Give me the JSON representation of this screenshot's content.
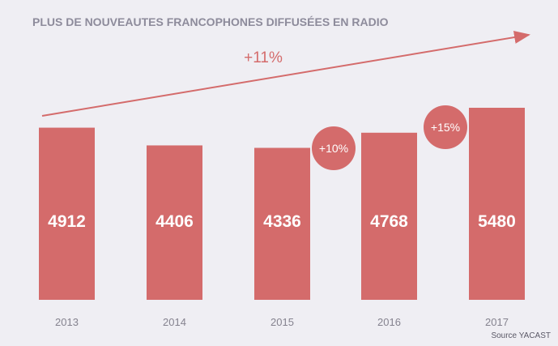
{
  "chart_data": {
    "type": "bar",
    "title": "PLUS DE NOUVEAUTES FRANCOPHONES DIFFUSÉES EN RADIO",
    "categories": [
      "2013",
      "2014",
      "2015",
      "2016",
      "2017"
    ],
    "values": [
      4912,
      4406,
      4336,
      4768,
      5480
    ],
    "value_labels": [
      "4912",
      "4406",
      "4336",
      "4768",
      "5480"
    ],
    "ylim": [
      0,
      5480
    ],
    "grid": false,
    "annotations": {
      "overall_growth": "+11%",
      "bubbles": [
        {
          "label": "+10%",
          "between": [
            "2015",
            "2016"
          ]
        },
        {
          "label": "+15%",
          "between": [
            "2016",
            "2017"
          ]
        }
      ]
    },
    "source": "Source YACAST",
    "colors": {
      "bar": "#d46b6b",
      "title": "#8d8b9b",
      "background": "#efeef3"
    }
  }
}
